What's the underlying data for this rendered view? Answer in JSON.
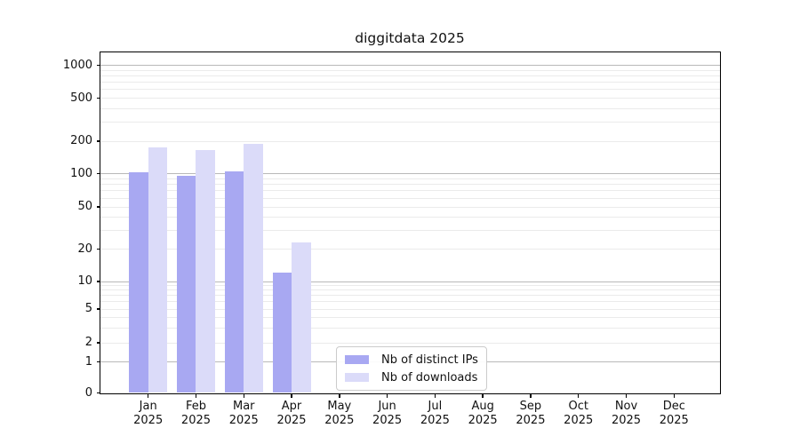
{
  "chart_data": {
    "type": "bar",
    "title": "diggitdata 2025",
    "categories": [
      "Jan",
      "Feb",
      "Mar",
      "Apr",
      "May",
      "Jun",
      "Jul",
      "Aug",
      "Sep",
      "Oct",
      "Nov",
      "Dec"
    ],
    "year": "2025",
    "series": [
      {
        "name": "Nb of distinct IPs",
        "color": "#a8a8f2",
        "values": [
          102,
          95,
          104,
          12,
          0,
          0,
          0,
          0,
          0,
          0,
          0,
          0
        ]
      },
      {
        "name": "Nb of downloads",
        "color": "#dbdbf9",
        "values": [
          175,
          165,
          190,
          23,
          0,
          0,
          0,
          0,
          0,
          0,
          0,
          0
        ]
      }
    ],
    "yticks": [
      0,
      1,
      2,
      5,
      10,
      20,
      50,
      100,
      200,
      500,
      1000
    ],
    "ytick_labels": [
      "0",
      "1",
      "2",
      "5",
      "10",
      "20",
      "50",
      "100",
      "200",
      "500",
      "1000"
    ],
    "yscale": "symlog",
    "ylim": [
      0,
      1300
    ],
    "xlabel": "",
    "ylabel": "",
    "grid": true,
    "legend_position": "inside-bottom-center",
    "colors": {
      "axis": "#000000",
      "grid_major": "#b9b9b9",
      "grid_minor": "#ebebeb",
      "background": "#ffffff"
    }
  }
}
